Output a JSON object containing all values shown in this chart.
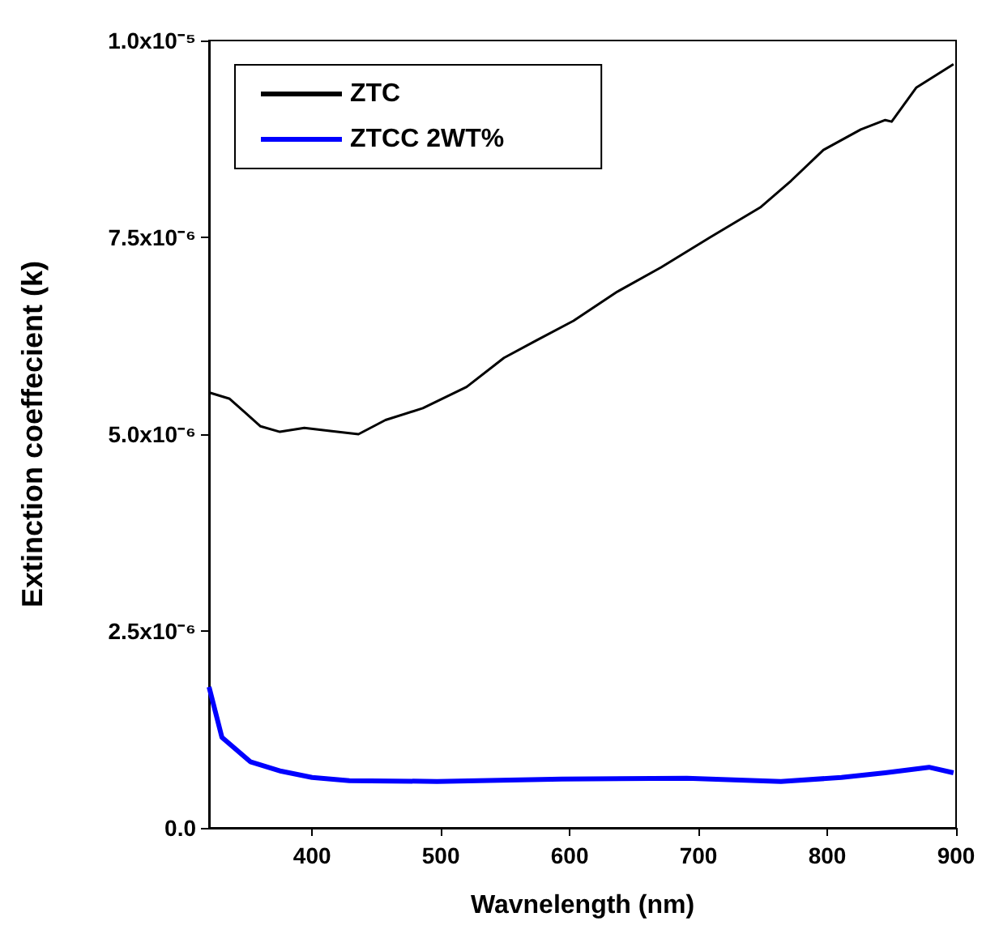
{
  "chart_data": {
    "type": "line",
    "xlabel": "Wavnelength (nm)",
    "ylabel": "Extinction coeffecient (k)",
    "xlim": [
      320,
      900
    ],
    "xticks": [
      400,
      500,
      600,
      700,
      800,
      900
    ],
    "ylim": [
      0,
      1e-05
    ],
    "yticks": [
      {
        "value": 0,
        "label": "0.0"
      },
      {
        "value": 2.5e-06,
        "label": "2.5x10⁻⁶"
      },
      {
        "value": 5e-06,
        "label": "5.0x10⁻⁶"
      },
      {
        "value": 7.5e-06,
        "label": "7.5x10⁻⁶"
      },
      {
        "value": 1e-05,
        "label": "1.0x10⁻⁵"
      }
    ],
    "grid": false,
    "legend": "top left",
    "marker": "none",
    "line_style": "solid",
    "series": [
      {
        "name": "ZTC",
        "color": "#000000",
        "x": [
          320,
          336,
          360,
          375,
          394,
          414,
          436,
          457,
          486,
          520,
          549,
          574,
          603,
          637,
          671,
          709,
          748,
          772,
          797,
          826,
          845,
          850,
          869,
          898
        ],
        "values": [
          5.53e-06,
          5.45e-06,
          5.1e-06,
          5.03e-06,
          5.08e-06,
          5.04e-06,
          5e-06,
          5.18e-06,
          5.33e-06,
          5.6e-06,
          5.97e-06,
          6.19e-06,
          6.44e-06,
          6.81e-06,
          7.12e-06,
          7.5e-06,
          7.88e-06,
          8.22e-06,
          8.61e-06,
          8.87e-06,
          8.99e-06,
          8.97e-06,
          9.4e-06,
          9.7e-06
        ]
      },
      {
        "name": "ZTCC 2WT%",
        "color": "#0000ff",
        "x": [
          320,
          330,
          352,
          376,
          400,
          429,
          497,
          594,
          691,
          764,
          811,
          845,
          879,
          898
        ],
        "values": [
          1.79e-06,
          1.15e-06,
          8.4e-07,
          7.2e-07,
          6.4e-07,
          6e-07,
          5.9e-07,
          6.2e-07,
          6.3e-07,
          5.9e-07,
          6.4e-07,
          7e-07,
          7.7e-07,
          7e-07
        ]
      }
    ]
  }
}
